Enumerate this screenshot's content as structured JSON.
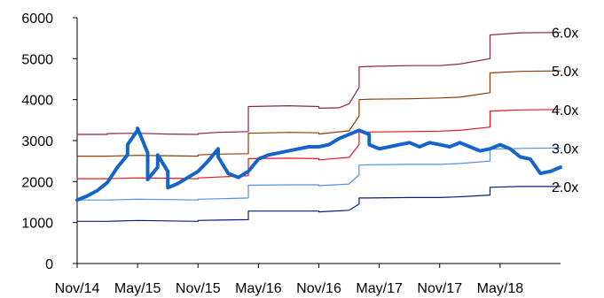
{
  "chart_data": {
    "type": "line",
    "title": "",
    "xlabel": "",
    "ylabel": "",
    "ylim": [
      0,
      6000
    ],
    "yticks": [
      0,
      1000,
      2000,
      3000,
      4000,
      5000,
      6000
    ],
    "xlim": [
      "2014-11",
      "2018-11"
    ],
    "xticks": [
      "Nov/14",
      "May/15",
      "Nov/15",
      "May/16",
      "Nov/16",
      "May/17",
      "Nov/17",
      "May/18"
    ],
    "grid": false,
    "legend": "none",
    "series": [
      {
        "label": "6.0x",
        "color": "#8b2252",
        "width": 1.2,
        "points": [
          [
            "2014-11",
            3150
          ],
          [
            "2015-02",
            3150
          ],
          [
            "2015-02",
            3170
          ],
          [
            "2015-05",
            3180
          ],
          [
            "2015-08",
            3160
          ],
          [
            "2015-11",
            3150
          ],
          [
            "2015-11",
            3170
          ],
          [
            "2016-01",
            3200
          ],
          [
            "2016-04",
            3220
          ],
          [
            "2016-04",
            3830
          ],
          [
            "2016-08",
            3850
          ],
          [
            "2016-11",
            3830
          ],
          [
            "2016-11",
            3790
          ],
          [
            "2017-01",
            3800
          ],
          [
            "2017-02",
            3900
          ],
          [
            "2017-03",
            4300
          ],
          [
            "2017-03",
            4800
          ],
          [
            "2017-04",
            4810
          ],
          [
            "2017-08",
            4830
          ],
          [
            "2017-11",
            4830
          ],
          [
            "2018-01",
            4870
          ],
          [
            "2018-04",
            5000
          ],
          [
            "2018-04",
            5580
          ],
          [
            "2018-07",
            5630
          ],
          [
            "2018-11",
            5640
          ]
        ]
      },
      {
        "label": "5.0x",
        "color": "#8b3a00",
        "width": 1.2,
        "points": [
          [
            "2014-11",
            2620
          ],
          [
            "2015-02",
            2620
          ],
          [
            "2015-05",
            2640
          ],
          [
            "2015-08",
            2630
          ],
          [
            "2015-11",
            2620
          ],
          [
            "2015-11",
            2650
          ],
          [
            "2016-01",
            2670
          ],
          [
            "2016-04",
            2680
          ],
          [
            "2016-04",
            3180
          ],
          [
            "2016-08",
            3200
          ],
          [
            "2016-11",
            3190
          ],
          [
            "2016-11",
            3160
          ],
          [
            "2017-02",
            3240
          ],
          [
            "2017-03",
            3600
          ],
          [
            "2017-03",
            4000
          ],
          [
            "2017-04",
            4010
          ],
          [
            "2017-08",
            4020
          ],
          [
            "2017-11",
            4040
          ],
          [
            "2018-01",
            4060
          ],
          [
            "2018-04",
            4170
          ],
          [
            "2018-04",
            4650
          ],
          [
            "2018-07",
            4690
          ],
          [
            "2018-11",
            4700
          ]
        ]
      },
      {
        "label": "4.0x",
        "color": "#e8141c",
        "width": 1.2,
        "points": [
          [
            "2014-11",
            2070
          ],
          [
            "2015-02",
            2070
          ],
          [
            "2015-05",
            2090
          ],
          [
            "2015-08",
            2080
          ],
          [
            "2015-11",
            2070
          ],
          [
            "2015-11",
            2090
          ],
          [
            "2016-01",
            2110
          ],
          [
            "2016-04",
            2140
          ],
          [
            "2016-04",
            2560
          ],
          [
            "2016-08",
            2570
          ],
          [
            "2016-11",
            2560
          ],
          [
            "2016-11",
            2530
          ],
          [
            "2017-02",
            2590
          ],
          [
            "2017-03",
            2900
          ],
          [
            "2017-03",
            3200
          ],
          [
            "2017-04",
            3210
          ],
          [
            "2017-08",
            3220
          ],
          [
            "2017-11",
            3230
          ],
          [
            "2018-01",
            3250
          ],
          [
            "2018-04",
            3330
          ],
          [
            "2018-04",
            3720
          ],
          [
            "2018-07",
            3750
          ],
          [
            "2018-11",
            3760
          ]
        ]
      },
      {
        "label": "3.0x",
        "color": "#4f8fe6",
        "width": 1.2,
        "points": [
          [
            "2014-11",
            1550
          ],
          [
            "2015-02",
            1550
          ],
          [
            "2015-05",
            1570
          ],
          [
            "2015-08",
            1560
          ],
          [
            "2015-11",
            1550
          ],
          [
            "2015-11",
            1570
          ],
          [
            "2016-01",
            1580
          ],
          [
            "2016-04",
            1600
          ],
          [
            "2016-04",
            1910
          ],
          [
            "2016-08",
            1920
          ],
          [
            "2016-11",
            1920
          ],
          [
            "2016-11",
            1900
          ],
          [
            "2017-02",
            1940
          ],
          [
            "2017-03",
            2170
          ],
          [
            "2017-03",
            2400
          ],
          [
            "2017-04",
            2410
          ],
          [
            "2017-08",
            2420
          ],
          [
            "2017-11",
            2420
          ],
          [
            "2018-01",
            2440
          ],
          [
            "2018-04",
            2500
          ],
          [
            "2018-04",
            2790
          ],
          [
            "2018-07",
            2810
          ],
          [
            "2018-11",
            2820
          ]
        ]
      },
      {
        "label": "2.0x",
        "color": "#0b1f7a",
        "width": 1.2,
        "points": [
          [
            "2014-11",
            1030
          ],
          [
            "2015-02",
            1030
          ],
          [
            "2015-05",
            1050
          ],
          [
            "2015-08",
            1040
          ],
          [
            "2015-11",
            1030
          ],
          [
            "2015-11",
            1050
          ],
          [
            "2016-01",
            1060
          ],
          [
            "2016-04",
            1070
          ],
          [
            "2016-04",
            1280
          ],
          [
            "2016-08",
            1280
          ],
          [
            "2016-11",
            1280
          ],
          [
            "2016-11",
            1260
          ],
          [
            "2017-02",
            1300
          ],
          [
            "2017-03",
            1450
          ],
          [
            "2017-03",
            1600
          ],
          [
            "2017-04",
            1600
          ],
          [
            "2017-08",
            1610
          ],
          [
            "2017-11",
            1610
          ],
          [
            "2018-01",
            1630
          ],
          [
            "2018-04",
            1670
          ],
          [
            "2018-04",
            1860
          ],
          [
            "2018-07",
            1880
          ],
          [
            "2018-11",
            1880
          ]
        ]
      },
      {
        "label": "",
        "color": "#1565c8",
        "width": 4,
        "points": [
          [
            "2014-11",
            1550
          ],
          [
            "2014-12",
            1650
          ],
          [
            "2015-01",
            1780
          ],
          [
            "2015-02",
            1980
          ],
          [
            "2015-03",
            2350
          ],
          [
            "2015-04",
            2650
          ],
          [
            "2015-04",
            2900
          ],
          [
            "2015-05",
            3250
          ],
          [
            "2015-05",
            3300
          ],
          [
            "2015-06",
            2700
          ],
          [
            "2015-06",
            2050
          ],
          [
            "2015-07",
            2350
          ],
          [
            "2015-07",
            2650
          ],
          [
            "2015-08",
            2250
          ],
          [
            "2015-08",
            1850
          ],
          [
            "2015-09",
            1950
          ],
          [
            "2015-10",
            2100
          ],
          [
            "2015-11",
            2250
          ],
          [
            "2015-12",
            2500
          ],
          [
            "2016-01",
            2800
          ],
          [
            "2016-01",
            2600
          ],
          [
            "2016-02",
            2200
          ],
          [
            "2016-03",
            2100
          ],
          [
            "2016-04",
            2250
          ],
          [
            "2016-05",
            2550
          ],
          [
            "2016-06",
            2650
          ],
          [
            "2016-07",
            2700
          ],
          [
            "2016-08",
            2750
          ],
          [
            "2016-09",
            2800
          ],
          [
            "2016-10",
            2850
          ],
          [
            "2016-11",
            2850
          ],
          [
            "2016-12",
            2900
          ],
          [
            "2017-01",
            3050
          ],
          [
            "2017-02",
            3150
          ],
          [
            "2017-03",
            3250
          ],
          [
            "2017-04",
            3150
          ],
          [
            "2017-04",
            2900
          ],
          [
            "2017-05",
            2800
          ],
          [
            "2017-06",
            2850
          ],
          [
            "2017-07",
            2900
          ],
          [
            "2017-08",
            2950
          ],
          [
            "2017-09",
            2850
          ],
          [
            "2017-10",
            2950
          ],
          [
            "2017-11",
            2900
          ],
          [
            "2017-12",
            2850
          ],
          [
            "2018-01",
            2950
          ],
          [
            "2018-02",
            2850
          ],
          [
            "2018-03",
            2750
          ],
          [
            "2018-04",
            2800
          ],
          [
            "2018-05",
            2900
          ],
          [
            "2018-06",
            2800
          ],
          [
            "2018-07",
            2600
          ],
          [
            "2018-08",
            2550
          ],
          [
            "2018-09",
            2200
          ],
          [
            "2018-10",
            2250
          ],
          [
            "2018-11",
            2350
          ]
        ]
      }
    ]
  }
}
